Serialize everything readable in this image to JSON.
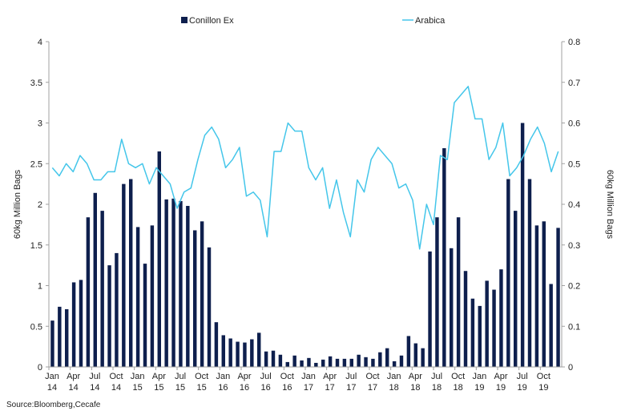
{
  "chart_data": {
    "type": "bar",
    "source": "Source:Bloomberg,Cecafe",
    "left_axis": {
      "title": "60kg Million Bags",
      "range": [
        0,
        4
      ],
      "ticks": [
        "0",
        "0.5",
        "1",
        "1.5",
        "2",
        "2.5",
        "3",
        "3.5",
        "4"
      ]
    },
    "right_axis": {
      "title": "60kg Million Bags",
      "range": [
        0,
        0.8
      ],
      "ticks": [
        "0",
        "0.1",
        "0.2",
        "0.3",
        "0.4",
        "0.5",
        "0.6",
        "0.7",
        "0.8"
      ]
    },
    "x_tick_labels": [
      {
        "month": "Jan",
        "year": "14",
        "index": 0
      },
      {
        "month": "Apr",
        "year": "14",
        "index": 3
      },
      {
        "month": "Jul",
        "year": "14",
        "index": 6
      },
      {
        "month": "Oct",
        "year": "14",
        "index": 9
      },
      {
        "month": "Jan",
        "year": "15",
        "index": 12
      },
      {
        "month": "Apr",
        "year": "15",
        "index": 15
      },
      {
        "month": "Jul",
        "year": "15",
        "index": 18
      },
      {
        "month": "Oct",
        "year": "15",
        "index": 21
      },
      {
        "month": "Jan",
        "year": "16",
        "index": 24
      },
      {
        "month": "Apr",
        "year": "16",
        "index": 27
      },
      {
        "month": "Jul",
        "year": "16",
        "index": 30
      },
      {
        "month": "Oct",
        "year": "16",
        "index": 33
      },
      {
        "month": "Jan",
        "year": "17",
        "index": 36
      },
      {
        "month": "Apr",
        "year": "17",
        "index": 39
      },
      {
        "month": "Jul",
        "year": "17",
        "index": 42
      },
      {
        "month": "Oct",
        "year": "17",
        "index": 45
      },
      {
        "month": "Jan",
        "year": "18",
        "index": 48
      },
      {
        "month": "Apr",
        "year": "18",
        "index": 51
      },
      {
        "month": "Jul",
        "year": "18",
        "index": 54
      },
      {
        "month": "Oct",
        "year": "18",
        "index": 57
      },
      {
        "month": "Jan",
        "year": "19",
        "index": 60
      },
      {
        "month": "Apr",
        "year": "19",
        "index": 63
      },
      {
        "month": "Jul",
        "year": "19",
        "index": 66
      },
      {
        "month": "Oct",
        "year": "19",
        "index": 69
      }
    ],
    "grid": false,
    "legend_position": "top-center",
    "series": [
      {
        "name": "Conillon Ex",
        "type": "bar",
        "axis": "left",
        "color": "#0e1f4d",
        "values": [
          0.57,
          0.74,
          0.71,
          1.04,
          1.07,
          1.84,
          2.14,
          1.92,
          1.25,
          1.4,
          2.25,
          2.31,
          1.72,
          1.27,
          1.74,
          2.65,
          2.06,
          2.07,
          2.04,
          1.98,
          1.68,
          1.79,
          1.47,
          0.55,
          0.39,
          0.35,
          0.31,
          0.3,
          0.34,
          0.42,
          0.19,
          0.2,
          0.15,
          0.06,
          0.14,
          0.08,
          0.11,
          0.05,
          0.09,
          0.13,
          0.1,
          0.1,
          0.1,
          0.15,
          0.12,
          0.1,
          0.18,
          0.23,
          0.07,
          0.14,
          0.38,
          0.29,
          0.23,
          1.42,
          1.84,
          2.69,
          1.46,
          1.84,
          1.18,
          0.84,
          0.75,
          1.06,
          0.95,
          1.2,
          2.31,
          1.92,
          3.0,
          2.31,
          1.74,
          1.79,
          1.02,
          1.71
        ]
      },
      {
        "name": "Arabica",
        "type": "line",
        "axis": "right",
        "color": "#44c6ea",
        "values": [
          0.49,
          0.47,
          0.5,
          0.48,
          0.52,
          0.5,
          0.46,
          0.46,
          0.48,
          0.48,
          0.56,
          0.5,
          0.49,
          0.5,
          0.45,
          0.49,
          0.47,
          0.45,
          0.39,
          0.43,
          0.44,
          0.51,
          0.57,
          0.59,
          0.56,
          0.49,
          0.51,
          0.54,
          0.42,
          0.43,
          0.41,
          0.32,
          0.53,
          0.53,
          0.6,
          0.58,
          0.58,
          0.49,
          0.46,
          0.49,
          0.39,
          0.46,
          0.38,
          0.32,
          0.46,
          0.43,
          0.51,
          0.54,
          0.52,
          0.5,
          0.44,
          0.45,
          0.41,
          0.29,
          0.4,
          0.35,
          0.52,
          0.51,
          0.65,
          0.67,
          0.69,
          0.61,
          0.61,
          0.51,
          0.54,
          0.6,
          0.47,
          0.49,
          0.52,
          0.56,
          0.59,
          0.55,
          0.48,
          0.53
        ]
      }
    ]
  }
}
